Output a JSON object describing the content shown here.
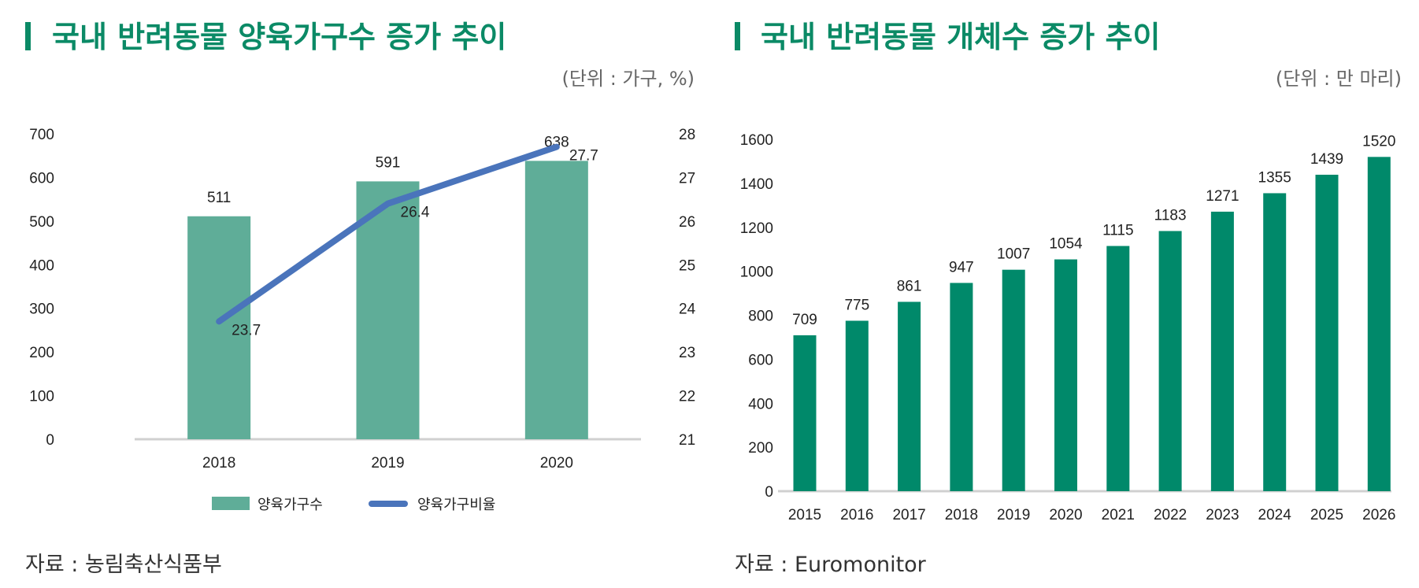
{
  "colors": {
    "title": "#0b8a66",
    "bar_left": "#5fad98",
    "line": "#4a74bb",
    "bar_right": "#00896a",
    "axis": "#d0d0d0"
  },
  "chart_data": [
    {
      "type": "bar+line",
      "title": "국내 반려동물 양육가구수 증가 추이",
      "unit": "(단위 : 가구, %)",
      "categories": [
        "2018",
        "2019",
        "2020"
      ],
      "series": [
        {
          "name": "양육가구수",
          "type": "bar",
          "axis": "left",
          "values": [
            511,
            591,
            638
          ]
        },
        {
          "name": "양육가구비율",
          "type": "line",
          "axis": "right",
          "values": [
            23.7,
            26.4,
            27.7
          ]
        }
      ],
      "ylim": [
        0,
        700
      ],
      "yticks": [
        "0",
        "100",
        "200",
        "300",
        "400",
        "500",
        "600",
        "700"
      ],
      "y2lim": [
        21,
        28
      ],
      "y2ticks": [
        "21",
        "22",
        "23",
        "24",
        "25",
        "26",
        "27",
        "28"
      ],
      "legend": "bottom",
      "grid": false,
      "source": "자료 : 농림축산식품부"
    },
    {
      "type": "bar",
      "title": "국내 반려동물 개체수 증가 추이",
      "unit": "(단위 : 만 마리)",
      "categories": [
        "2015",
        "2016",
        "2017",
        "2018",
        "2019",
        "2020",
        "2021",
        "2022",
        "2023",
        "2024",
        "2025",
        "2026"
      ],
      "values": [
        709,
        775,
        861,
        947,
        1007,
        1054,
        1115,
        1183,
        1271,
        1355,
        1439,
        1520
      ],
      "ylim": [
        0,
        1600
      ],
      "yticks": [
        "0",
        "200",
        "400",
        "600",
        "800",
        "1000",
        "1200",
        "1400",
        "1600"
      ],
      "grid": false,
      "source": "자료 : Euromonitor"
    }
  ]
}
